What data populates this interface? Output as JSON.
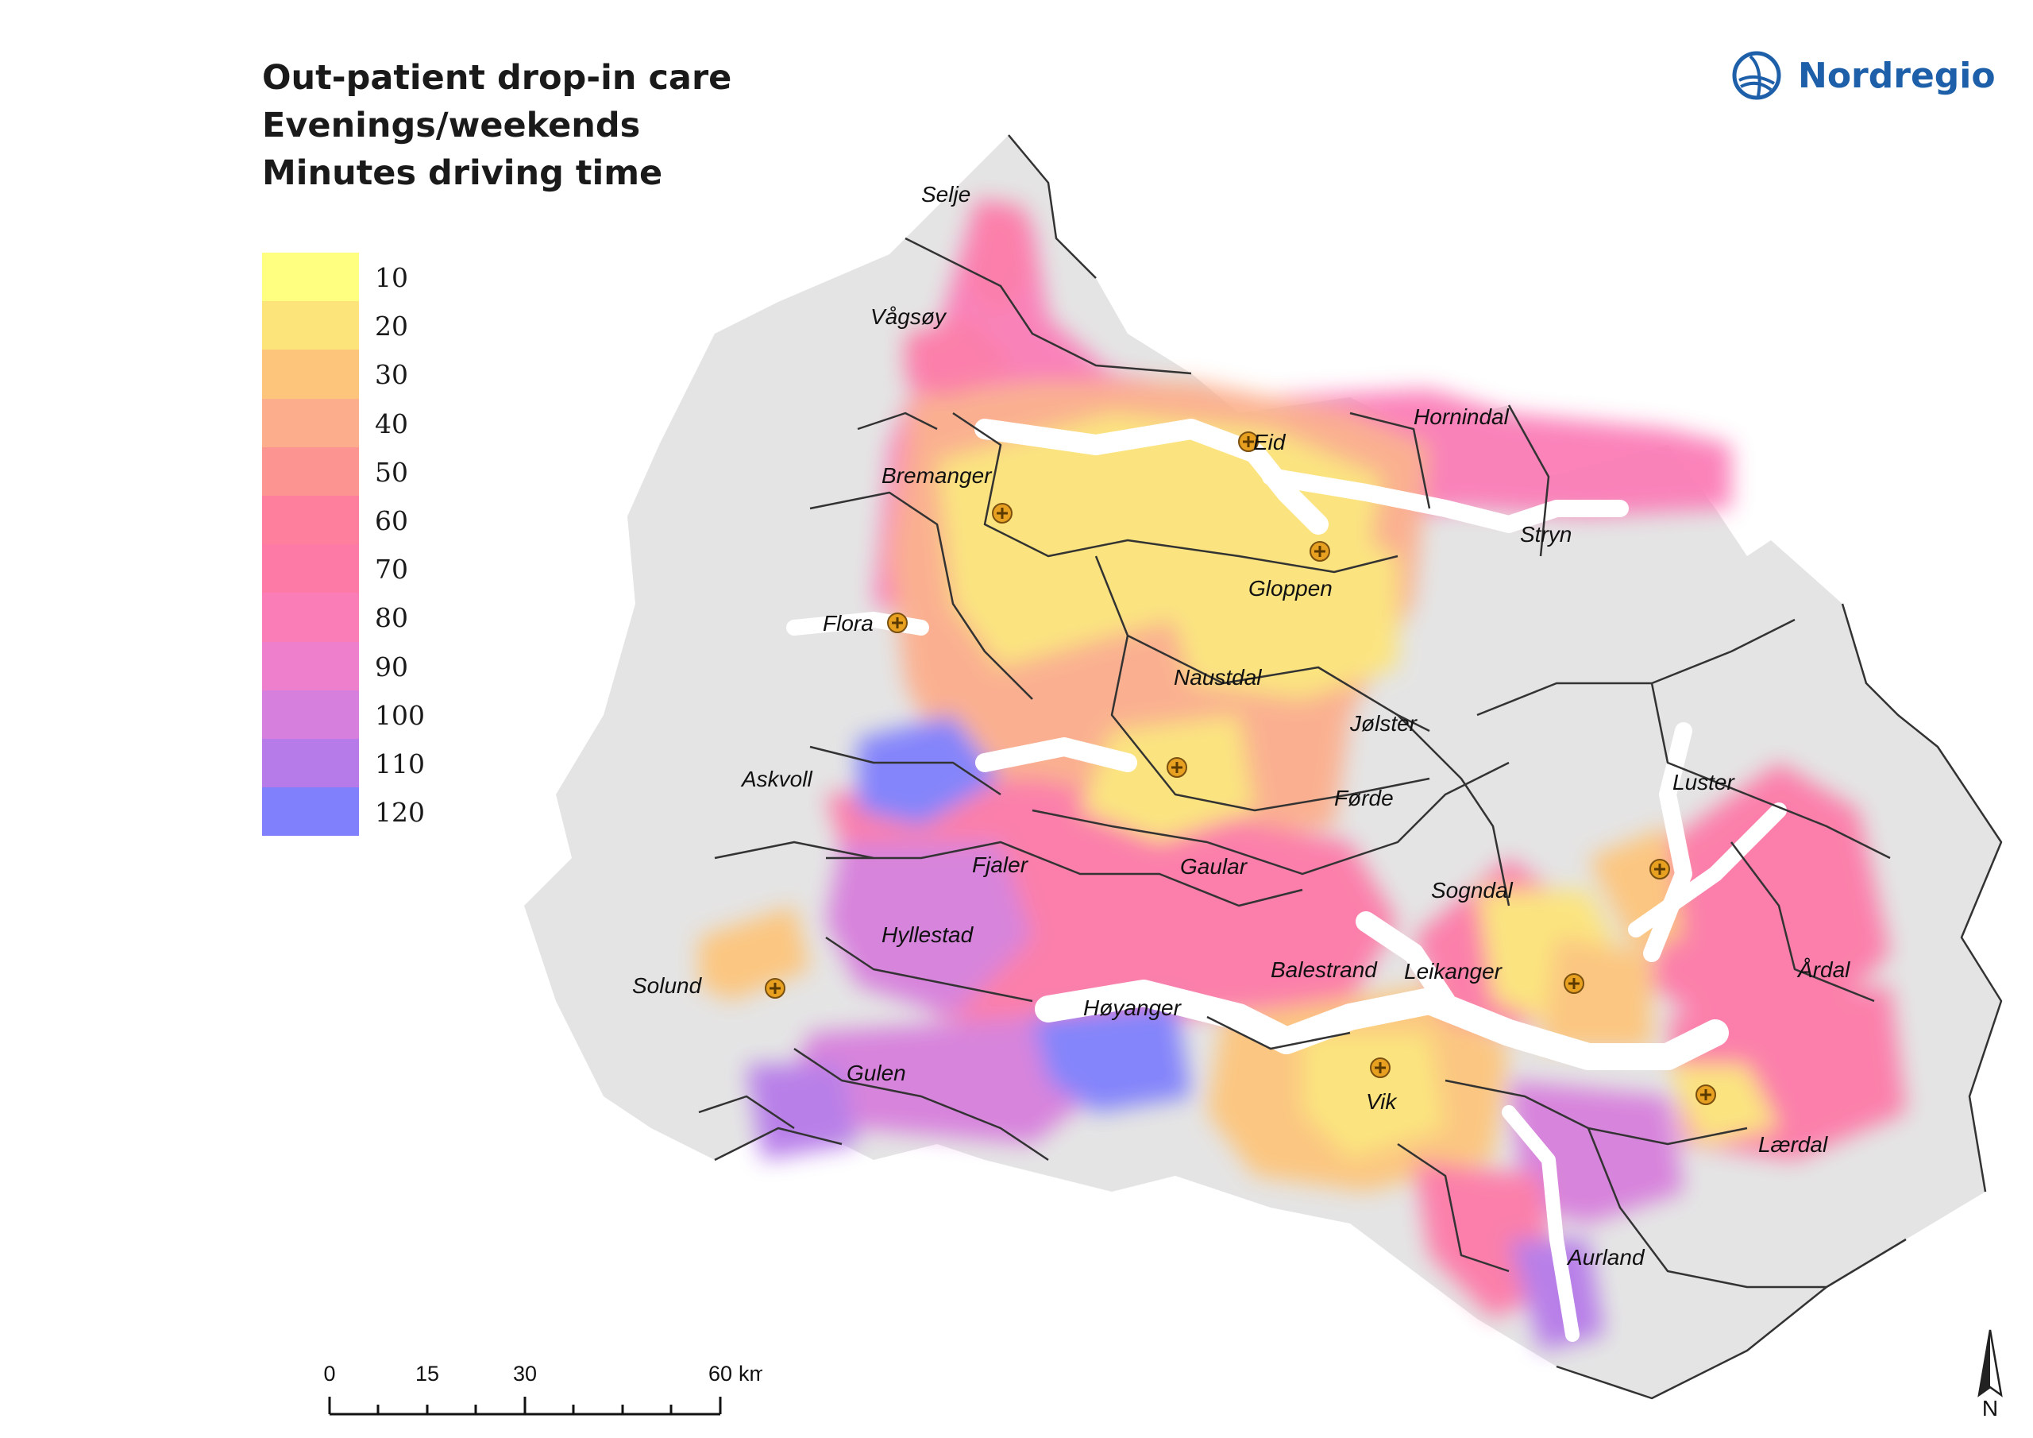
{
  "title": {
    "line1": "Out-patient drop-in care",
    "line2": "Evenings/weekends",
    "line3": "Minutes driving time"
  },
  "legend": {
    "items": [
      {
        "label": "10",
        "color": "#ffff80"
      },
      {
        "label": "20",
        "color": "#fde47a"
      },
      {
        "label": "30",
        "color": "#fdc57c"
      },
      {
        "label": "40",
        "color": "#fcae8c"
      },
      {
        "label": "50",
        "color": "#fc9592"
      },
      {
        "label": "60",
        "color": "#fd7f9d"
      },
      {
        "label": "70",
        "color": "#fd7aa7"
      },
      {
        "label": "80",
        "color": "#fb7db7"
      },
      {
        "label": "90",
        "color": "#ee7fcc"
      },
      {
        "label": "100",
        "color": "#d77fdc"
      },
      {
        "label": "110",
        "color": "#b67ae9"
      },
      {
        "label": "120",
        "color": "#8080fd"
      }
    ]
  },
  "logo": {
    "text": "Nordregio",
    "color": "#1d5fa8",
    "icon": "nordregio-logo-icon"
  },
  "places": {
    "selje": "Selje",
    "vagsoy": "Vågsøy",
    "eid": "Eid",
    "hornindal": "Hornindal",
    "bremanger": "Bremanger",
    "stryn": "Stryn",
    "gloppen": "Gloppen",
    "flora": "Flora",
    "naustdal": "Naustdal",
    "jolster": "Jølster",
    "askvoll": "Askvoll",
    "luster": "Luster",
    "forde": "Førde",
    "fjaler": "Fjaler",
    "gaular": "Gaular",
    "sogndal": "Sogndal",
    "hyllestad": "Hyllestad",
    "ardal": "Årdal",
    "balestrand": "Balestrand",
    "leikanger": "Leikanger",
    "solund": "Solund",
    "hoyanger": "Høyanger",
    "gulen": "Gulen",
    "vik": "Vik",
    "laerdal": "Lærdal",
    "aurland": "Aurland"
  },
  "facility_icon": "medical-cross-icon",
  "scale": {
    "t0": "0",
    "t15": "15",
    "t30": "30",
    "t60": "60",
    "unit": "km"
  },
  "north": {
    "label": "N",
    "icon": "north-arrow-icon"
  },
  "colors": {
    "land": "#e6e6e6",
    "border": "#333333",
    "fjord": "#ffffff",
    "facility": "#e8a020"
  }
}
